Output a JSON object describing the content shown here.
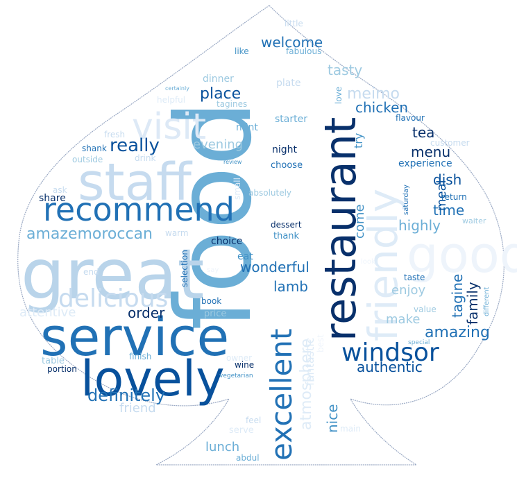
{
  "palette": {
    "darkest": "#08306b",
    "dark": "#08519c",
    "blue": "#2171b5",
    "mid": "#4292c6",
    "light": "#6baed6",
    "lighter": "#9ecae1",
    "pale": "#c6dbef",
    "palest": "#deebf7",
    "outline": "#9aa9c4"
  },
  "words": [
    {
      "text": "food",
      "color": "#6baed6",
      "rotate": true
    },
    {
      "text": "great",
      "color": "#b9d4ea",
      "rotate": false
    },
    {
      "text": "service",
      "color": "#2171b5",
      "rotate": false
    },
    {
      "text": "restaurant",
      "color": "#08306b",
      "rotate": true
    },
    {
      "text": "staff",
      "color": "#c6dbef",
      "rotate": false
    },
    {
      "text": "recommend",
      "color": "#2171b5",
      "rotate": false
    },
    {
      "text": "lovely",
      "color": "#08519c",
      "rotate": false
    },
    {
      "text": "friendly",
      "color": "#deebf7",
      "rotate": true
    },
    {
      "text": "good",
      "color": "#eef4fb",
      "rotate": false
    },
    {
      "text": "visit",
      "color": "#dde9f6",
      "rotate": false
    },
    {
      "text": "windsor",
      "color": "#08519c",
      "rotate": false
    },
    {
      "text": "excellent",
      "color": "#2171b5",
      "rotate": true
    },
    {
      "text": "delicious",
      "color": "#c6dbef",
      "rotate": false
    },
    {
      "text": "really",
      "color": "#08519c",
      "rotate": false
    },
    {
      "text": "definitely",
      "color": "#2171b5",
      "rotate": false
    },
    {
      "text": "welcome",
      "color": "#2171b5",
      "rotate": false
    },
    {
      "text": "place",
      "color": "#08519c",
      "rotate": false
    },
    {
      "text": "tasty",
      "color": "#9ecae1",
      "rotate": false
    },
    {
      "text": "meimo",
      "color": "#c6dbef",
      "rotate": false
    },
    {
      "text": "chicken",
      "color": "#2171b5",
      "rotate": false
    },
    {
      "text": "tea",
      "color": "#08306b",
      "rotate": false
    },
    {
      "text": "menu",
      "color": "#08306b",
      "rotate": false
    },
    {
      "text": "amazemoroccan",
      "color": "#6baed6",
      "rotate": false
    },
    {
      "text": "atmosphere",
      "color": "#deebf7",
      "rotate": true
    },
    {
      "text": "amazing",
      "color": "#2171b5",
      "rotate": false
    },
    {
      "text": "authentic",
      "color": "#08519c",
      "rotate": false
    },
    {
      "text": "highly",
      "color": "#6baed6",
      "rotate": false
    },
    {
      "text": "wonderful",
      "color": "#2171b5",
      "rotate": false
    },
    {
      "text": "time",
      "color": "#2171b5",
      "rotate": false
    },
    {
      "text": "dish",
      "color": "#08519c",
      "rotate": false
    },
    {
      "text": "tagine",
      "color": "#2171b5",
      "rotate": true
    },
    {
      "text": "family",
      "color": "#08306b",
      "rotate": true
    },
    {
      "text": "evening",
      "color": "#9ecae1",
      "rotate": false
    },
    {
      "text": "lamb",
      "color": "#2171b5",
      "rotate": false
    },
    {
      "text": "order",
      "color": "#08306b",
      "rotate": false
    },
    {
      "text": "make",
      "color": "#9ecae1",
      "rotate": false
    },
    {
      "text": "enjoy",
      "color": "#9ecae1",
      "rotate": false
    },
    {
      "text": "friend",
      "color": "#c6dbef",
      "rotate": false
    },
    {
      "text": "lunch",
      "color": "#6baed6",
      "rotate": false
    },
    {
      "text": "nice",
      "color": "#4292c6",
      "rotate": true
    },
    {
      "text": "come",
      "color": "#4292c6",
      "rotate": true
    },
    {
      "text": "meal",
      "color": "#08519c",
      "rotate": true
    },
    {
      "text": "try",
      "color": "#4292c6",
      "rotate": true
    },
    {
      "text": "experience",
      "color": "#2171b5",
      "rotate": false
    },
    {
      "text": "attentive",
      "color": "#deebf7",
      "rotate": false
    },
    {
      "text": "fantastic",
      "color": "#deebf7",
      "rotate": true
    },
    {
      "text": "starter",
      "color": "#6baed6",
      "rotate": false
    },
    {
      "text": "night",
      "color": "#08306b",
      "rotate": false
    },
    {
      "text": "choose",
      "color": "#2171b5",
      "rotate": false
    },
    {
      "text": "dessert",
      "color": "#08306b",
      "rotate": false
    },
    {
      "text": "thank",
      "color": "#4292c6",
      "rotate": false
    },
    {
      "text": "choice",
      "color": "#08306b",
      "rotate": false
    },
    {
      "text": "eat",
      "color": "#4292c6",
      "rotate": false
    },
    {
      "text": "dinner",
      "color": "#9ecae1",
      "rotate": false
    },
    {
      "text": "plate",
      "color": "#c6dbef",
      "rotate": false
    },
    {
      "text": "mint",
      "color": "#6baed6",
      "rotate": false
    },
    {
      "text": "share",
      "color": "#08306b",
      "rotate": false
    },
    {
      "text": "shank",
      "color": "#2171b5",
      "rotate": false
    },
    {
      "text": "fresh",
      "color": "#c6dbef",
      "rotate": false
    },
    {
      "text": "drink",
      "color": "#c6dbef",
      "rotate": false
    },
    {
      "text": "outside",
      "color": "#9ecae1",
      "rotate": false
    },
    {
      "text": "book",
      "color": "#2171b5",
      "rotate": false
    },
    {
      "text": "price",
      "color": "#9ecae1",
      "rotate": false
    },
    {
      "text": "table",
      "color": "#9ecae1",
      "rotate": false
    },
    {
      "text": "portion",
      "color": "#08306b",
      "rotate": false
    },
    {
      "text": "finish",
      "color": "#6baed6",
      "rotate": false
    },
    {
      "text": "wine",
      "color": "#08306b",
      "rotate": false
    },
    {
      "text": "vegetarian",
      "color": "#4292c6",
      "rotate": false
    },
    {
      "text": "owner",
      "color": "#deebf7",
      "rotate": false
    },
    {
      "text": "feel",
      "color": "#c6dbef",
      "rotate": false
    },
    {
      "text": "serve",
      "color": "#deebf7",
      "rotate": false
    },
    {
      "text": "main",
      "color": "#deebf7",
      "rotate": false
    },
    {
      "text": "abdul",
      "color": "#6baed6",
      "rotate": false
    },
    {
      "text": "selection",
      "color": "#2171b5",
      "rotate": true
    },
    {
      "text": "warm",
      "color": "#c6dbef",
      "rotate": false
    },
    {
      "text": "end",
      "color": "#c6dbef",
      "rotate": false
    },
    {
      "text": "ask",
      "color": "#c6dbef",
      "rotate": false
    },
    {
      "text": "small",
      "color": "#deebf7",
      "rotate": true
    },
    {
      "text": "absolutely",
      "color": "#9ecae1",
      "rotate": false
    },
    {
      "text": "like",
      "color": "#4292c6",
      "rotate": false
    },
    {
      "text": "fabulous",
      "color": "#6baed6",
      "rotate": false
    },
    {
      "text": "little",
      "color": "#c6dbef",
      "rotate": false
    },
    {
      "text": "certainly",
      "color": "#6baed6",
      "rotate": false
    },
    {
      "text": "helpful",
      "color": "#deebf7",
      "rotate": false
    },
    {
      "text": "tagines",
      "color": "#9ecae1",
      "rotate": false
    },
    {
      "text": "love",
      "color": "#6baed6",
      "rotate": true
    },
    {
      "text": "flavour",
      "color": "#2171b5",
      "rotate": false
    },
    {
      "text": "customer",
      "color": "#c6dbef",
      "rotate": false
    },
    {
      "text": "return",
      "color": "#2171b5",
      "rotate": false
    },
    {
      "text": "saturday",
      "color": "#2171b5",
      "rotate": true
    },
    {
      "text": "waiter",
      "color": "#9ecae1",
      "rotate": false
    },
    {
      "text": "taste",
      "color": "#2171b5",
      "rotate": false
    },
    {
      "text": "value",
      "color": "#9ecae1",
      "rotate": false
    },
    {
      "text": "different",
      "color": "#6baed6",
      "rotate": true
    },
    {
      "text": "special",
      "color": "#6baed6",
      "rotate": false
    },
    {
      "text": "review",
      "color": "#4292c6",
      "rotate": false
    },
    {
      "text": "say",
      "color": "#eef4fb",
      "rotate": false
    },
    {
      "text": "look",
      "color": "#eef4fb",
      "rotate": false
    },
    {
      "text": "best",
      "color": "#eef4fb",
      "rotate": true
    }
  ]
}
